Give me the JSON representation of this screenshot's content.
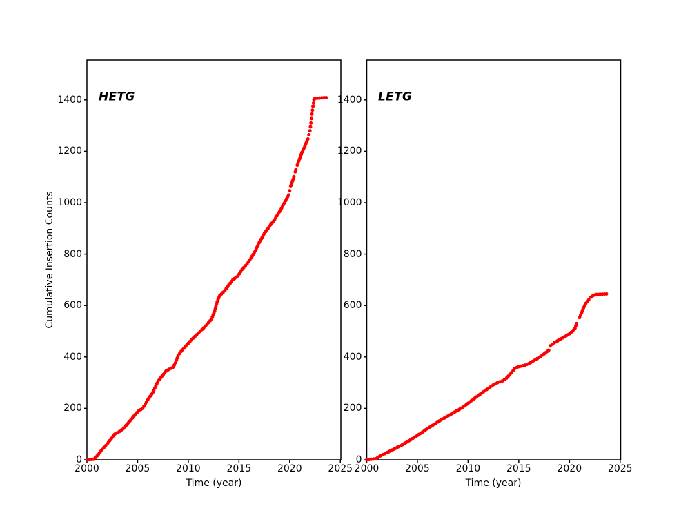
{
  "figure": {
    "background": "#ffffff",
    "text_color": "#000000"
  },
  "chart_data": [
    {
      "type": "scatter",
      "panel_label": "HETG",
      "xlabel": "Time (year)",
      "ylabel": "Cumulative Insertion Counts",
      "xlim": [
        2000,
        2025.05
      ],
      "ylim": [
        0,
        1555
      ],
      "xticks": [
        2000,
        2005,
        2010,
        2015,
        2020,
        2025
      ],
      "yticks": [
        0,
        200,
        400,
        600,
        800,
        1000,
        1200,
        1400
      ],
      "marker_color": "#ff0000",
      "final_count": 1409,
      "gaps": [
        [
          2020.45,
          2020.53
        ],
        [
          2020.62,
          2020.7
        ]
      ],
      "points": [
        [
          2000.0,
          0
        ],
        [
          2000.65,
          2
        ],
        [
          2001.0,
          15
        ],
        [
          2001.5,
          40
        ],
        [
          2002.0,
          62
        ],
        [
          2002.4,
          82
        ],
        [
          2002.75,
          100
        ],
        [
          2003.2,
          110
        ],
        [
          2003.6,
          122
        ],
        [
          2004.0,
          140
        ],
        [
          2004.5,
          163
        ],
        [
          2004.8,
          178
        ],
        [
          2005.1,
          190
        ],
        [
          2005.5,
          200
        ],
        [
          2006.0,
          233
        ],
        [
          2006.5,
          262
        ],
        [
          2006.8,
          288
        ],
        [
          2007.0,
          305
        ],
        [
          2007.4,
          325
        ],
        [
          2007.8,
          345
        ],
        [
          2008.1,
          352
        ],
        [
          2008.5,
          360
        ],
        [
          2008.75,
          378
        ],
        [
          2009.0,
          405
        ],
        [
          2009.3,
          422
        ],
        [
          2009.7,
          440
        ],
        [
          2010.3,
          466
        ],
        [
          2011.0,
          493
        ],
        [
          2011.7,
          520
        ],
        [
          2012.3,
          548
        ],
        [
          2012.6,
          578
        ],
        [
          2012.85,
          615
        ],
        [
          2013.1,
          638
        ],
        [
          2013.6,
          658
        ],
        [
          2014.0,
          680
        ],
        [
          2014.4,
          700
        ],
        [
          2014.9,
          715
        ],
        [
          2015.3,
          740
        ],
        [
          2015.8,
          762
        ],
        [
          2016.2,
          785
        ],
        [
          2016.6,
          812
        ],
        [
          2017.0,
          845
        ],
        [
          2017.5,
          880
        ],
        [
          2018.0,
          908
        ],
        [
          2018.5,
          933
        ],
        [
          2019.0,
          965
        ],
        [
          2019.5,
          1000
        ],
        [
          2019.9,
          1030
        ],
        [
          2020.1,
          1063
        ],
        [
          2020.35,
          1092
        ],
        [
          2020.55,
          1120
        ],
        [
          2020.75,
          1146
        ],
        [
          2021.0,
          1172
        ],
        [
          2021.2,
          1195
        ],
        [
          2021.5,
          1220
        ],
        [
          2021.8,
          1248
        ],
        [
          2022.0,
          1280
        ],
        [
          2022.1,
          1310
        ],
        [
          2022.2,
          1345
        ],
        [
          2022.3,
          1375
        ],
        [
          2022.4,
          1400
        ],
        [
          2022.5,
          1406
        ],
        [
          2023.6,
          1409
        ]
      ]
    },
    {
      "type": "scatter",
      "panel_label": "LETG",
      "xlabel": "Time (year)",
      "ylabel": "",
      "xlim": [
        2000,
        2025.05
      ],
      "ylim": [
        0,
        1555
      ],
      "xticks": [
        2000,
        2005,
        2010,
        2015,
        2020,
        2025
      ],
      "yticks": [
        0,
        200,
        400,
        600,
        800,
        1000,
        1200,
        1400
      ],
      "marker_color": "#ff0000",
      "final_count": 645,
      "gaps": [
        [
          2018.0,
          2018.08
        ],
        [
          2020.78,
          2020.97
        ]
      ],
      "points": [
        [
          2000.0,
          0
        ],
        [
          2000.9,
          4
        ],
        [
          2001.4,
          16
        ],
        [
          2002.0,
          28
        ],
        [
          2002.5,
          38
        ],
        [
          2003.0,
          48
        ],
        [
          2003.5,
          58
        ],
        [
          2004.0,
          70
        ],
        [
          2004.5,
          82
        ],
        [
          2005.0,
          95
        ],
        [
          2005.5,
          108
        ],
        [
          2006.0,
          122
        ],
        [
          2006.5,
          134
        ],
        [
          2007.0,
          147
        ],
        [
          2007.5,
          159
        ],
        [
          2008.0,
          170
        ],
        [
          2008.5,
          182
        ],
        [
          2009.0,
          193
        ],
        [
          2009.5,
          205
        ],
        [
          2010.0,
          220
        ],
        [
          2010.5,
          235
        ],
        [
          2011.0,
          250
        ],
        [
          2011.5,
          264
        ],
        [
          2012.0,
          278
        ],
        [
          2012.5,
          292
        ],
        [
          2012.9,
          300
        ],
        [
          2013.4,
          307
        ],
        [
          2013.8,
          318
        ],
        [
          2014.3,
          340
        ],
        [
          2014.6,
          355
        ],
        [
          2015.0,
          362
        ],
        [
          2015.6,
          368
        ],
        [
          2016.0,
          374
        ],
        [
          2016.5,
          386
        ],
        [
          2017.0,
          398
        ],
        [
          2017.5,
          412
        ],
        [
          2017.95,
          426
        ],
        [
          2018.1,
          443
        ],
        [
          2018.5,
          455
        ],
        [
          2019.0,
          467
        ],
        [
          2019.5,
          478
        ],
        [
          2020.0,
          490
        ],
        [
          2020.3,
          500
        ],
        [
          2020.55,
          512
        ],
        [
          2020.7,
          530
        ],
        [
          2021.0,
          553
        ],
        [
          2021.2,
          572
        ],
        [
          2021.4,
          592
        ],
        [
          2021.6,
          608
        ],
        [
          2021.9,
          622
        ],
        [
          2022.1,
          632
        ],
        [
          2022.4,
          640
        ],
        [
          2022.6,
          643
        ],
        [
          2023.65,
          645
        ]
      ]
    }
  ]
}
